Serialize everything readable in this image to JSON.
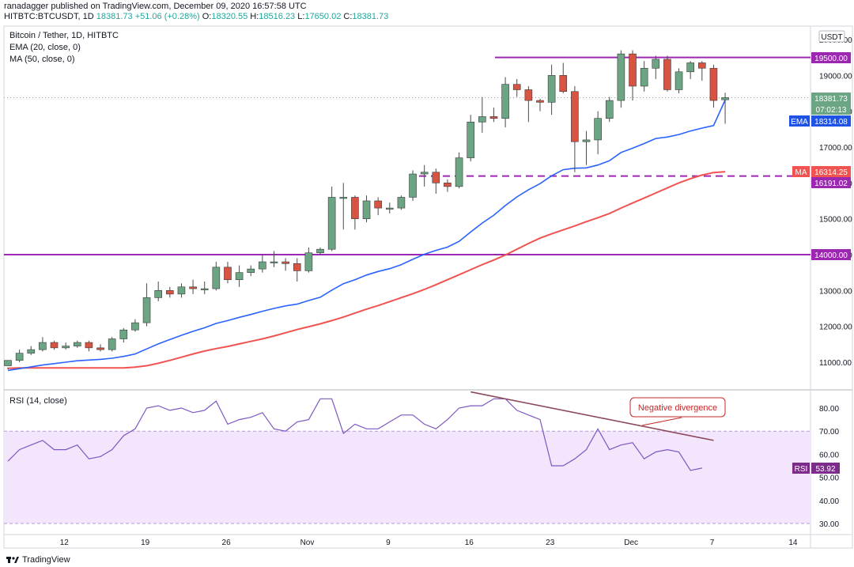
{
  "header": {
    "publisher_line": "ranadagger published on TradingView.com, December 09, 2020 16:57:58 UTC",
    "symbol": "HITBTC:BTCUSDT, 1D",
    "close_now": "18381.73",
    "change": "+51.06 (+0.28%)",
    "o_label": "O:",
    "o": "18320.55",
    "h_label": "H:",
    "h": "18516.23",
    "l_label": "L:",
    "l": "17650.02",
    "c_label": "C:",
    "c": "18381.73"
  },
  "legend": {
    "main": "Bitcoin / Tether, 1D, HITBTC",
    "ema": "EMA (20, close, 0)",
    "ma": "MA (50, close, 0)",
    "rsi": "RSI (14, close)"
  },
  "currency": "USDT",
  "footer": {
    "brand": "TradingView"
  },
  "colors": {
    "up": "#6ba583",
    "down": "#d75442",
    "ema": "#2962ff",
    "ma": "#f05350",
    "level": "#9c27b0",
    "rsi": "#7e57c2",
    "rsi_band": "#f3e5fc",
    "trendline": "#8b4a5a"
  },
  "annotations": {
    "neg_div": "Negative divergence",
    "tags": {
      "level_19500": "19500.00",
      "last": "18381.73",
      "countdown": "07:02:13",
      "ema_label": "EMA",
      "ema_value": "18314.08",
      "ma_label": "MA",
      "ma_value": "16314.25",
      "level_16191": "16191.02",
      "level_14000": "14000.00",
      "rsi_label": "RSI",
      "rsi_value": "53.92"
    }
  },
  "chart_data": [
    {
      "type": "candlestick",
      "title": "Bitcoin / Tether, 1D, HITBTC",
      "x_ticks": [
        "12",
        "19",
        "26",
        "Nov",
        "9",
        "16",
        "23",
        "Dec",
        "7",
        "14"
      ],
      "y_ticks": [
        20000,
        19000,
        18000,
        17000,
        16000,
        15000,
        14000,
        13000,
        12000,
        11000
      ],
      "ylim": [
        10300,
        20300
      ],
      "candles": [
        [
          10900,
          11050,
          10850,
          10800
        ],
        [
          11050,
          11250,
          11350,
          11000
        ],
        [
          11250,
          11350,
          11450,
          11200
        ],
        [
          11350,
          11550,
          11700,
          11300
        ],
        [
          11550,
          11400,
          11600,
          11350
        ],
        [
          11400,
          11450,
          11550,
          11350
        ],
        [
          11450,
          11550,
          11600,
          11400
        ],
        [
          11550,
          11400,
          11600,
          11300
        ],
        [
          11400,
          11350,
          11500,
          11300
        ],
        [
          11350,
          11650,
          11700,
          11300
        ],
        [
          11650,
          11900,
          11950,
          11550
        ],
        [
          11900,
          12100,
          12200,
          11850
        ],
        [
          12100,
          12800,
          13200,
          12000
        ],
        [
          12800,
          13000,
          13250,
          12700
        ],
        [
          13000,
          12900,
          13100,
          12800
        ],
        [
          12900,
          13100,
          13200,
          12800
        ],
        [
          13100,
          13050,
          13300,
          12900
        ],
        [
          13050,
          13050,
          13250,
          12900
        ],
        [
          13050,
          13650,
          13800,
          13000
        ],
        [
          13650,
          13300,
          13800,
          13200
        ],
        [
          13300,
          13500,
          13700,
          13100
        ],
        [
          13500,
          13600,
          13700,
          13400
        ],
        [
          13600,
          13800,
          14000,
          13500
        ],
        [
          13800,
          13800,
          14100,
          13650
        ],
        [
          13800,
          13750,
          13900,
          13550
        ],
        [
          13750,
          13550,
          13900,
          13250
        ],
        [
          13550,
          14050,
          14200,
          13500
        ],
        [
          14050,
          14150,
          14200,
          14000
        ],
        [
          14150,
          15600,
          15900,
          14100
        ],
        [
          15600,
          15600,
          16000,
          14700
        ],
        [
          15600,
          15000,
          15650,
          14700
        ],
        [
          15000,
          15500,
          15650,
          14900
        ],
        [
          15500,
          15300,
          15600,
          15100
        ],
        [
          15300,
          15300,
          15450,
          15150
        ],
        [
          15300,
          15600,
          15650,
          15250
        ],
        [
          15600,
          16250,
          16350,
          15500
        ],
        [
          16250,
          16300,
          16500,
          15900
        ],
        [
          16300,
          16000,
          16400,
          15700
        ],
        [
          16000,
          15900,
          16100,
          15750
        ],
        [
          15900,
          16700,
          16850,
          15850
        ],
        [
          16700,
          17700,
          17900,
          16600
        ],
        [
          17700,
          17850,
          18400,
          17400
        ],
        [
          17850,
          17800,
          18100,
          17700
        ],
        [
          17800,
          18750,
          18950,
          17550
        ],
        [
          18750,
          18600,
          18900,
          18400
        ],
        [
          18600,
          18300,
          18700,
          17700
        ],
        [
          18300,
          18250,
          18350,
          18000
        ],
        [
          18250,
          19000,
          19300,
          17900
        ],
        [
          19000,
          18550,
          19350,
          18500
        ],
        [
          18550,
          17150,
          18700,
          16300
        ],
        [
          17150,
          17200,
          17450,
          16500
        ],
        [
          17200,
          17800,
          18000,
          16800
        ],
        [
          17800,
          18300,
          18400,
          17700
        ],
        [
          18300,
          19600,
          19700,
          18100
        ],
        [
          19600,
          18700,
          19700,
          18300
        ],
        [
          18700,
          19200,
          19400,
          18550
        ],
        [
          19200,
          19450,
          19550,
          18900
        ],
        [
          19450,
          18600,
          19550,
          18550
        ],
        [
          18600,
          19100,
          19200,
          18500
        ],
        [
          19100,
          19350,
          19400,
          18900
        ],
        [
          19350,
          19200,
          19400,
          18850
        ],
        [
          19200,
          18300,
          19300,
          18100
        ],
        [
          18320,
          18380,
          18516,
          17650
        ]
      ],
      "ema20": [
        10770,
        10820,
        10870,
        10920,
        10960,
        11000,
        11040,
        11060,
        11080,
        11110,
        11160,
        11230,
        11370,
        11510,
        11630,
        11750,
        11860,
        11960,
        12080,
        12160,
        12250,
        12330,
        12420,
        12500,
        12570,
        12620,
        12720,
        12810,
        13010,
        13190,
        13300,
        13430,
        13530,
        13610,
        13720,
        13870,
        14010,
        14120,
        14210,
        14370,
        14630,
        14880,
        15100,
        15370,
        15610,
        15810,
        15980,
        16200,
        16370,
        16410,
        16420,
        16500,
        16620,
        16850,
        16970,
        17100,
        17240,
        17280,
        17350,
        17450,
        17530,
        17600,
        18314
      ],
      "ma50": [
        10830,
        10840,
        10840,
        10840,
        10840,
        10840,
        10840,
        10840,
        10840,
        10840,
        10840,
        10860,
        10900,
        10970,
        11050,
        11140,
        11230,
        11310,
        11380,
        11440,
        11510,
        11580,
        11650,
        11730,
        11820,
        11910,
        11990,
        12070,
        12160,
        12260,
        12370,
        12480,
        12580,
        12690,
        12800,
        12910,
        13030,
        13160,
        13300,
        13440,
        13580,
        13720,
        13850,
        13990,
        14150,
        14310,
        14460,
        14580,
        14690,
        14800,
        14920,
        15030,
        15150,
        15300,
        15440,
        15580,
        15720,
        15860,
        16000,
        16120,
        16220,
        16290,
        16314
      ],
      "levels": [
        {
          "value": 19500,
          "style": "solid",
          "label": "19500.00"
        },
        {
          "value": 16191,
          "style": "dashed",
          "label": "16191.02"
        },
        {
          "value": 14000,
          "style": "solid",
          "label": "14000.00"
        }
      ]
    },
    {
      "type": "line",
      "title": "RSI (14, close)",
      "y_ticks": [
        80,
        70,
        60,
        50,
        40,
        30
      ],
      "ylim": [
        26,
        90
      ],
      "band": [
        30,
        70
      ],
      "values": [
        57,
        62,
        64,
        66,
        62,
        62,
        64,
        58,
        59,
        62,
        68,
        71,
        80,
        81,
        79,
        80,
        78,
        79,
        83,
        73,
        75,
        76,
        78,
        71,
        70,
        74,
        75,
        84,
        84,
        69,
        73,
        71,
        71,
        74,
        77,
        77,
        73,
        71,
        75,
        80,
        81,
        81,
        84,
        84,
        79,
        77,
        75,
        55,
        55,
        58,
        62,
        71,
        62,
        64,
        65,
        58,
        61,
        62,
        61,
        53,
        54
      ],
      "last_value": 53.92,
      "divergence_line": {
        "from": {
          "index": 40,
          "value": 87
        },
        "to": {
          "index": 61,
          "value": 66
        }
      }
    }
  ]
}
